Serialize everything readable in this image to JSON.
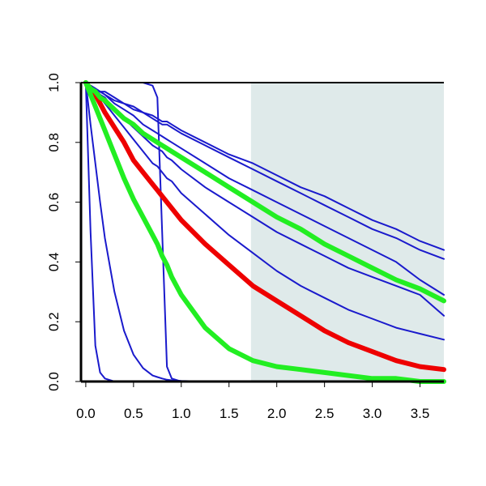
{
  "chart_data": {
    "type": "line",
    "title": "",
    "xlabel": "",
    "ylabel": "",
    "xlim": [
      -0.05,
      3.75
    ],
    "ylim": [
      0.0,
      1.0
    ],
    "grid": false,
    "x_ticks": [
      {
        "value": 0.0,
        "label": "0.0"
      },
      {
        "value": 0.5,
        "label": "0.5"
      },
      {
        "value": 1.0,
        "label": "1.0"
      },
      {
        "value": 1.5,
        "label": "1.5"
      },
      {
        "value": 2.0,
        "label": "2.0"
      },
      {
        "value": 2.5,
        "label": "2.5"
      },
      {
        "value": 3.0,
        "label": "3.0"
      },
      {
        "value": 3.5,
        "label": "3.5"
      }
    ],
    "y_ticks": [
      {
        "value": 0.0,
        "label": "0.0"
      },
      {
        "value": 0.2,
        "label": "0.2"
      },
      {
        "value": 0.4,
        "label": "0.4"
      },
      {
        "value": 0.6,
        "label": "0.6"
      },
      {
        "value": 0.8,
        "label": "0.8"
      },
      {
        "value": 1.0,
        "label": "1.0"
      }
    ],
    "shaded_region": {
      "x_start": 1.73,
      "x_end": 3.75,
      "color": "#dfeaea"
    },
    "colors": {
      "blue": "#1a1acc",
      "red": "#ee0000",
      "green": "#22ee22",
      "axis": "#000000"
    },
    "x": [
      0.0,
      0.05,
      0.1,
      0.15,
      0.2,
      0.3,
      0.4,
      0.5,
      0.6,
      0.7,
      0.75,
      0.8,
      0.85,
      0.9,
      1.0,
      1.25,
      1.5,
      1.75,
      2.0,
      2.25,
      2.5,
      2.75,
      3.0,
      3.25,
      3.5,
      3.75
    ],
    "series": [
      {
        "color": "blue",
        "width": 2,
        "values": [
          1.0,
          0.99,
          0.97,
          0.95,
          0.93,
          0.89,
          0.85,
          0.81,
          0.77,
          0.73,
          0.72,
          0.7,
          0.68,
          0.67,
          0.63,
          0.56,
          0.49,
          0.43,
          0.37,
          0.32,
          0.28,
          0.24,
          0.21,
          0.18,
          0.16,
          0.14
        ]
      },
      {
        "color": "blue",
        "width": 2,
        "values": [
          1.0,
          0.99,
          0.98,
          0.96,
          0.95,
          0.91,
          0.88,
          0.85,
          0.82,
          0.79,
          0.78,
          0.77,
          0.75,
          0.74,
          0.71,
          0.65,
          0.6,
          0.55,
          0.5,
          0.46,
          0.42,
          0.38,
          0.35,
          0.32,
          0.29,
          0.22
        ]
      },
      {
        "color": "blue",
        "width": 2,
        "values": [
          1.0,
          0.99,
          0.98,
          0.97,
          0.96,
          0.93,
          0.91,
          0.89,
          0.86,
          0.84,
          0.83,
          0.82,
          0.81,
          0.8,
          0.78,
          0.73,
          0.68,
          0.64,
          0.6,
          0.56,
          0.52,
          0.48,
          0.44,
          0.4,
          0.34,
          0.29
        ]
      },
      {
        "color": "blue",
        "width": 2,
        "values": [
          1.0,
          0.99,
          0.98,
          0.97,
          0.96,
          0.94,
          0.93,
          0.91,
          0.9,
          0.88,
          0.87,
          0.86,
          0.86,
          0.85,
          0.83,
          0.79,
          0.75,
          0.71,
          0.67,
          0.63,
          0.59,
          0.55,
          0.51,
          0.48,
          0.44,
          0.41
        ]
      },
      {
        "color": "blue",
        "width": 2,
        "values": [
          1.0,
          0.99,
          0.98,
          0.97,
          0.97,
          0.95,
          0.93,
          0.92,
          0.9,
          0.89,
          0.88,
          0.87,
          0.87,
          0.86,
          0.84,
          0.8,
          0.76,
          0.73,
          0.69,
          0.65,
          0.62,
          0.58,
          0.54,
          0.51,
          0.47,
          0.44
        ]
      },
      {
        "color": "blue",
        "width": 2,
        "values": [
          1.0,
          0.5,
          0.12,
          0.03,
          0.01,
          0.0,
          0.0,
          0.0,
          0.0,
          0.0,
          0.0,
          0.0,
          0.0,
          0.0,
          0.0,
          0.0,
          0.0,
          0.0,
          0.0,
          0.0,
          0.0,
          0.0,
          0.0,
          0.0,
          0.0,
          0.0
        ]
      },
      {
        "color": "blue",
        "width": 2,
        "values": [
          1.0,
          0.86,
          0.73,
          0.6,
          0.48,
          0.3,
          0.17,
          0.09,
          0.045,
          0.02,
          0.015,
          0.01,
          0.006,
          0.004,
          0.002,
          0.0,
          0.0,
          0.0,
          0.0,
          0.0,
          0.0,
          0.0,
          0.0,
          0.0,
          0.0,
          0.0
        ]
      },
      {
        "color": "blue",
        "width": 2,
        "values": [
          1.0,
          1.0,
          1.0,
          1.0,
          1.0,
          1.0,
          1.0,
          1.0,
          1.0,
          0.99,
          0.95,
          0.5,
          0.05,
          0.01,
          0.0,
          0.0,
          0.0,
          0.0,
          0.0,
          0.0,
          0.0,
          0.0,
          0.0,
          0.0,
          0.0,
          0.0
        ]
      },
      {
        "color": "red",
        "width": 6,
        "values": [
          1.0,
          0.98,
          0.96,
          0.93,
          0.9,
          0.85,
          0.8,
          0.74,
          0.7,
          0.66,
          0.64,
          0.62,
          0.6,
          0.58,
          0.54,
          0.46,
          0.39,
          0.32,
          0.27,
          0.22,
          0.17,
          0.13,
          0.1,
          0.07,
          0.05,
          0.04
        ]
      },
      {
        "color": "green",
        "width": 6,
        "values": [
          1.0,
          0.96,
          0.92,
          0.88,
          0.84,
          0.76,
          0.68,
          0.61,
          0.55,
          0.49,
          0.46,
          0.42,
          0.39,
          0.35,
          0.29,
          0.18,
          0.11,
          0.07,
          0.05,
          0.04,
          0.03,
          0.02,
          0.01,
          0.01,
          0.0,
          0.0
        ]
      },
      {
        "color": "green",
        "width": 6,
        "values": [
          1.0,
          0.98,
          0.97,
          0.95,
          0.94,
          0.91,
          0.88,
          0.86,
          0.83,
          0.81,
          0.8,
          0.79,
          0.78,
          0.77,
          0.75,
          0.7,
          0.65,
          0.6,
          0.55,
          0.51,
          0.46,
          0.42,
          0.38,
          0.34,
          0.31,
          0.27
        ]
      }
    ]
  }
}
